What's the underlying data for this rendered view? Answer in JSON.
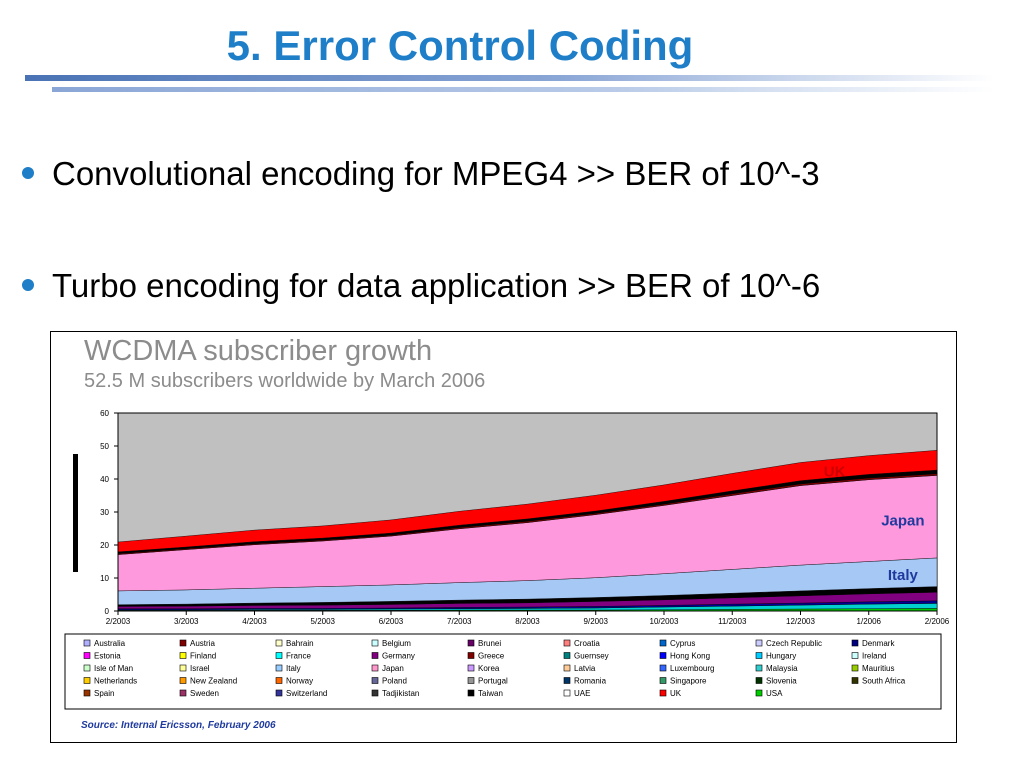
{
  "slide": {
    "title": "5. Error Control Coding",
    "bullets": [
      "Convolutional encoding for MPEG4 >> BER of 10^-3",
      "Turbo encoding for data application >> BER of 10^-6"
    ],
    "accent_color": "#1f7ec8"
  },
  "chart_data": {
    "type": "area",
    "stacked": true,
    "title": "WCDMA subscriber growth",
    "subtitle": "52.5 M subscribers worldwide by March 2006",
    "x": [
      "2/2003",
      "3/2003",
      "4/2003",
      "5/2003",
      "6/2003",
      "7/2003",
      "8/2003",
      "9/2003",
      "10/2003",
      "11/2003",
      "12/2003",
      "1/2006",
      "2/2006"
    ],
    "ylim": [
      0,
      60
    ],
    "yticks": [
      0,
      10,
      20,
      30,
      40,
      50,
      60
    ],
    "grid": false,
    "plot_background": "#c0c0c0",
    "series": [
      {
        "name": "USA",
        "color": "#00c800",
        "values": [
          0.2,
          0.2,
          0.2,
          0.2,
          0.2,
          0.3,
          0.3,
          0.3,
          0.4,
          0.5,
          0.6,
          0.7,
          0.8
        ]
      },
      {
        "name": "Hong Kong",
        "color": "#00d0d0",
        "values": [
          0.2,
          0.2,
          0.3,
          0.3,
          0.4,
          0.4,
          0.5,
          0.6,
          0.8,
          1.0,
          1.2,
          1.4,
          1.5
        ]
      },
      {
        "name": "Taiwan",
        "color": "#000099",
        "values": [
          0.3,
          0.3,
          0.3,
          0.3,
          0.3,
          0.4,
          0.4,
          0.5,
          0.5,
          0.6,
          0.6,
          0.7,
          0.8
        ]
      },
      {
        "name": "Germany",
        "color": "#800080",
        "values": [
          0.7,
          0.8,
          0.9,
          1.0,
          1.1,
          1.2,
          1.3,
          1.5,
          1.7,
          1.9,
          2.2,
          2.4,
          2.6
        ]
      },
      {
        "name": "Spain",
        "color": "#000000",
        "values": [
          0.5,
          0.6,
          0.7,
          0.8,
          0.9,
          1.0,
          1.1,
          1.2,
          1.3,
          1.4,
          1.5,
          1.6,
          1.7
        ]
      },
      {
        "name": "Italy",
        "color": "#a6c8f5",
        "values": [
          4.2,
          4.3,
          4.5,
          4.8,
          5.0,
          5.3,
          5.6,
          6.0,
          6.6,
          7.2,
          7.8,
          8.2,
          8.7
        ]
      },
      {
        "name": "Japan",
        "color": "#ff99dd",
        "values": [
          11.0,
          12.2,
          13.2,
          13.8,
          14.8,
          16.3,
          17.6,
          19.1,
          20.7,
          22.4,
          24.1,
          24.8,
          25.0
        ]
      },
      {
        "name": "Austria",
        "color": "#800000",
        "values": [
          0.3,
          0.3,
          0.3,
          0.3,
          0.3,
          0.4,
          0.4,
          0.4,
          0.4,
          0.5,
          0.5,
          0.5,
          0.5
        ]
      },
      {
        "name": "Sweden",
        "color": "#000000",
        "values": [
          0.5,
          0.5,
          0.6,
          0.6,
          0.6,
          0.7,
          0.7,
          0.7,
          0.8,
          0.9,
          1.0,
          1.1,
          1.1
        ]
      },
      {
        "name": "UK",
        "color": "#ff0000",
        "values": [
          3.0,
          3.3,
          3.5,
          3.7,
          4.0,
          4.2,
          4.5,
          4.8,
          5.0,
          5.3,
          5.5,
          5.7,
          6.0
        ]
      }
    ],
    "annotations": [
      {
        "text": "UK",
        "color": "#cc0000",
        "at_x": "12/2003",
        "at_series": "UK"
      },
      {
        "text": "Japan",
        "color": "#1f3a9e",
        "at_x": "1/2006",
        "at_series": "Japan"
      },
      {
        "text": "Italy",
        "color": "#1f3a9e",
        "at_x": "1/2006",
        "at_series": "Italy"
      }
    ],
    "legend": {
      "placement": "bottom",
      "items": [
        {
          "name": "Australia",
          "color": "#b0b0ff"
        },
        {
          "name": "Austria",
          "color": "#800000"
        },
        {
          "name": "Bahrain",
          "color": "#ffffcc"
        },
        {
          "name": "Belgium",
          "color": "#ccffff"
        },
        {
          "name": "Brunei",
          "color": "#660066"
        },
        {
          "name": "Croatia",
          "color": "#ff8080"
        },
        {
          "name": "Cyprus",
          "color": "#0066cc"
        },
        {
          "name": "Czech Republic",
          "color": "#ccccff"
        },
        {
          "name": "Denmark",
          "color": "#000080"
        },
        {
          "name": "Estonia",
          "color": "#ff00ff"
        },
        {
          "name": "Finland",
          "color": "#ffff00"
        },
        {
          "name": "France",
          "color": "#00ffff"
        },
        {
          "name": "Germany",
          "color": "#800080"
        },
        {
          "name": "Greece",
          "color": "#800000"
        },
        {
          "name": "Guernsey",
          "color": "#008080"
        },
        {
          "name": "Hong Kong",
          "color": "#0000ff"
        },
        {
          "name": "Hungary",
          "color": "#00ccff"
        },
        {
          "name": "Ireland",
          "color": "#ccffff"
        },
        {
          "name": "Isle of Man",
          "color": "#ccffcc"
        },
        {
          "name": "Israel",
          "color": "#ffff99"
        },
        {
          "name": "Italy",
          "color": "#99ccff"
        },
        {
          "name": "Japan",
          "color": "#ff99cc"
        },
        {
          "name": "Korea",
          "color": "#cc99ff"
        },
        {
          "name": "Latvia",
          "color": "#ffcc99"
        },
        {
          "name": "Luxembourg",
          "color": "#3366ff"
        },
        {
          "name": "Malaysia",
          "color": "#33cccc"
        },
        {
          "name": "Mauritius",
          "color": "#99cc00"
        },
        {
          "name": "Netherlands",
          "color": "#ffcc00"
        },
        {
          "name": "New Zealand",
          "color": "#ff9900"
        },
        {
          "name": "Norway",
          "color": "#ff6600"
        },
        {
          "name": "Poland",
          "color": "#666699"
        },
        {
          "name": "Portugal",
          "color": "#969696"
        },
        {
          "name": "Romania",
          "color": "#003366"
        },
        {
          "name": "Singapore",
          "color": "#339966"
        },
        {
          "name": "Slovenia",
          "color": "#003300"
        },
        {
          "name": "South Africa",
          "color": "#333300"
        },
        {
          "name": "Spain",
          "color": "#993300"
        },
        {
          "name": "Sweden",
          "color": "#993366"
        },
        {
          "name": "Switzerland",
          "color": "#333399"
        },
        {
          "name": "Tadjikistan",
          "color": "#333333"
        },
        {
          "name": "Taiwan",
          "color": "#000000"
        },
        {
          "name": "UAE",
          "color": "#ffffff"
        },
        {
          "name": "UK",
          "color": "#ff0000"
        },
        {
          "name": "USA",
          "color": "#00cc00"
        }
      ]
    },
    "source": "Source: Internal Ericsson, February 2006"
  }
}
